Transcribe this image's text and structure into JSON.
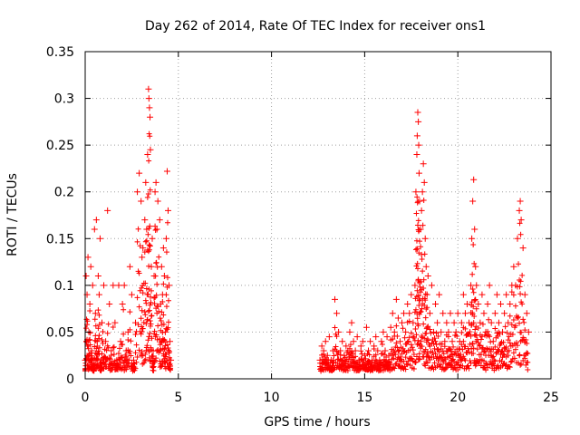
{
  "chart_data": {
    "type": "scatter",
    "title": "Day 262 of 2014, Rate Of TEC Index for receiver ons1",
    "xlabel": "GPS time / hours",
    "ylabel": "ROTI / TECUs",
    "xlim": [
      0,
      25
    ],
    "ylim": [
      0,
      0.35
    ],
    "grid": true,
    "marker": "+",
    "series_color": "#ff0000",
    "x_ticks": [
      {
        "value": 0,
        "label": "0"
      },
      {
        "value": 5,
        "label": "5"
      },
      {
        "value": 10,
        "label": "10"
      },
      {
        "value": 15,
        "label": "15"
      },
      {
        "value": 20,
        "label": "20"
      },
      {
        "value": 25,
        "label": "25"
      }
    ],
    "y_ticks": [
      {
        "value": 0,
        "label": "0"
      },
      {
        "value": 0.05,
        "label": "0.05"
      },
      {
        "value": 0.1,
        "label": "0.1"
      },
      {
        "value": 0.15,
        "label": "0.15"
      },
      {
        "value": 0.2,
        "label": "0.2"
      },
      {
        "value": 0.25,
        "label": "0.25"
      },
      {
        "value": 0.3,
        "label": "0.3"
      },
      {
        "value": 0.35,
        "label": "0.35"
      }
    ],
    "series": [
      {
        "name": "ROTI",
        "points": [
          [
            0.0,
            0.02
          ],
          [
            0.05,
            0.11
          ],
          [
            0.1,
            0.09
          ],
          [
            0.15,
            0.13
          ],
          [
            0.2,
            0.05
          ],
          [
            0.25,
            0.08
          ],
          [
            0.3,
            0.12
          ],
          [
            0.35,
            0.03
          ],
          [
            0.4,
            0.1
          ],
          [
            0.45,
            0.015
          ],
          [
            0.5,
            0.16
          ],
          [
            0.55,
            0.07
          ],
          [
            0.6,
            0.17
          ],
          [
            0.65,
            0.04
          ],
          [
            0.7,
            0.11
          ],
          [
            0.75,
            0.09
          ],
          [
            0.8,
            0.15
          ],
          [
            0.85,
            0.02
          ],
          [
            0.9,
            0.06
          ],
          [
            1.0,
            0.1
          ],
          [
            1.1,
            0.04
          ],
          [
            1.2,
            0.18
          ],
          [
            1.3,
            0.08
          ],
          [
            1.4,
            0.03
          ],
          [
            1.5,
            0.1
          ],
          [
            1.6,
            0.06
          ],
          [
            1.7,
            0.02
          ],
          [
            1.8,
            0.1
          ],
          [
            1.9,
            0.04
          ],
          [
            2.0,
            0.08
          ],
          [
            2.1,
            0.1
          ],
          [
            2.2,
            0.03
          ],
          [
            2.3,
            0.05
          ],
          [
            2.4,
            0.12
          ],
          [
            2.5,
            0.09
          ],
          [
            2.6,
            0.02
          ],
          [
            2.7,
            0.06
          ],
          [
            2.8,
            0.2
          ],
          [
            2.9,
            0.22
          ],
          [
            3.0,
            0.19
          ],
          [
            3.05,
            0.13
          ],
          [
            3.1,
            0.14
          ],
          [
            3.2,
            0.17
          ],
          [
            3.25,
            0.21
          ],
          [
            3.3,
            0.16
          ],
          [
            3.35,
            0.24
          ],
          [
            3.4,
            0.31
          ],
          [
            3.42,
            0.3
          ],
          [
            3.45,
            0.29
          ],
          [
            3.48,
            0.28
          ],
          [
            3.5,
            0.245
          ],
          [
            3.55,
            0.12
          ],
          [
            3.6,
            0.15
          ],
          [
            3.65,
            0.03
          ],
          [
            3.7,
            0.11
          ],
          [
            3.75,
            0.2
          ],
          [
            3.8,
            0.21
          ],
          [
            3.85,
            0.16
          ],
          [
            3.9,
            0.19
          ],
          [
            4.0,
            0.17
          ],
          [
            4.05,
            0.08
          ],
          [
            4.1,
            0.12
          ],
          [
            4.15,
            0.09
          ],
          [
            4.2,
            0.14
          ],
          [
            4.25,
            0.11
          ],
          [
            4.3,
            0.05
          ],
          [
            4.35,
            0.15
          ],
          [
            4.4,
            0.222
          ],
          [
            4.45,
            0.18
          ],
          [
            4.5,
            0.1
          ],
          [
            4.55,
            0.04
          ],
          [
            4.6,
            0.02
          ],
          [
            12.6,
            0.02
          ],
          [
            12.7,
            0.035
          ],
          [
            12.8,
            0.03
          ],
          [
            12.9,
            0.04
          ],
          [
            13.0,
            0.025
          ],
          [
            13.1,
            0.045
          ],
          [
            13.2,
            0.02
          ],
          [
            13.3,
            0.03
          ],
          [
            13.4,
            0.085
          ],
          [
            13.5,
            0.07
          ],
          [
            13.6,
            0.05
          ],
          [
            13.7,
            0.03
          ],
          [
            13.8,
            0.04
          ],
          [
            13.9,
            0.025
          ],
          [
            14.0,
            0.035
          ],
          [
            14.1,
            0.03
          ],
          [
            14.2,
            0.05
          ],
          [
            14.3,
            0.06
          ],
          [
            14.4,
            0.04
          ],
          [
            14.5,
            0.03
          ],
          [
            14.6,
            0.045
          ],
          [
            14.7,
            0.02
          ],
          [
            14.8,
            0.035
          ],
          [
            14.9,
            0.04
          ],
          [
            15.0,
            0.025
          ],
          [
            15.1,
            0.055
          ],
          [
            15.2,
            0.03
          ],
          [
            15.3,
            0.04
          ],
          [
            15.4,
            0.02
          ],
          [
            15.5,
            0.035
          ],
          [
            15.6,
            0.045
          ],
          [
            15.7,
            0.03
          ],
          [
            15.8,
            0.02
          ],
          [
            15.9,
            0.04
          ],
          [
            16.0,
            0.05
          ],
          [
            16.1,
            0.03
          ],
          [
            16.2,
            0.045
          ],
          [
            16.3,
            0.025
          ],
          [
            16.4,
            0.055
          ],
          [
            16.5,
            0.07
          ],
          [
            16.6,
            0.05
          ],
          [
            16.7,
            0.085
          ],
          [
            16.8,
            0.065
          ],
          [
            16.9,
            0.04
          ],
          [
            17.0,
            0.06
          ],
          [
            17.1,
            0.07
          ],
          [
            17.2,
            0.05
          ],
          [
            17.3,
            0.08
          ],
          [
            17.4,
            0.07
          ],
          [
            17.5,
            0.09
          ],
          [
            17.6,
            0.06
          ],
          [
            17.7,
            0.1
          ],
          [
            17.75,
            0.2
          ],
          [
            17.8,
            0.24
          ],
          [
            17.82,
            0.26
          ],
          [
            17.85,
            0.285
          ],
          [
            17.88,
            0.275
          ],
          [
            17.9,
            0.25
          ],
          [
            17.92,
            0.22
          ],
          [
            17.95,
            0.19
          ],
          [
            18.0,
            0.16
          ],
          [
            18.05,
            0.18
          ],
          [
            18.1,
            0.2
          ],
          [
            18.15,
            0.23
          ],
          [
            18.2,
            0.21
          ],
          [
            18.25,
            0.15
          ],
          [
            18.3,
            0.12
          ],
          [
            18.35,
            0.09
          ],
          [
            18.4,
            0.11
          ],
          [
            18.5,
            0.07
          ],
          [
            18.6,
            0.1
          ],
          [
            18.7,
            0.05
          ],
          [
            18.8,
            0.08
          ],
          [
            18.9,
            0.06
          ],
          [
            19.0,
            0.09
          ],
          [
            19.1,
            0.05
          ],
          [
            19.2,
            0.07
          ],
          [
            19.3,
            0.04
          ],
          [
            19.4,
            0.06
          ],
          [
            19.5,
            0.05
          ],
          [
            19.6,
            0.07
          ],
          [
            19.7,
            0.04
          ],
          [
            19.8,
            0.06
          ],
          [
            19.9,
            0.05
          ],
          [
            20.0,
            0.07
          ],
          [
            20.1,
            0.04
          ],
          [
            20.2,
            0.06
          ],
          [
            20.3,
            0.09
          ],
          [
            20.4,
            0.07
          ],
          [
            20.5,
            0.08
          ],
          [
            20.6,
            0.06
          ],
          [
            20.7,
            0.1
          ],
          [
            20.75,
            0.15
          ],
          [
            20.8,
            0.19
          ],
          [
            20.85,
            0.213
          ],
          [
            20.9,
            0.16
          ],
          [
            20.95,
            0.12
          ],
          [
            21.0,
            0.1
          ],
          [
            21.1,
            0.08
          ],
          [
            21.2,
            0.06
          ],
          [
            21.3,
            0.09
          ],
          [
            21.4,
            0.07
          ],
          [
            21.5,
            0.05
          ],
          [
            21.6,
            0.08
          ],
          [
            21.7,
            0.1
          ],
          [
            21.8,
            0.06
          ],
          [
            21.9,
            0.04
          ],
          [
            22.0,
            0.07
          ],
          [
            22.1,
            0.09
          ],
          [
            22.2,
            0.06
          ],
          [
            22.3,
            0.08
          ],
          [
            22.4,
            0.05
          ],
          [
            22.5,
            0.07
          ],
          [
            22.6,
            0.09
          ],
          [
            22.7,
            0.06
          ],
          [
            22.8,
            0.08
          ],
          [
            22.9,
            0.1
          ],
          [
            23.0,
            0.12
          ],
          [
            23.1,
            0.1
          ],
          [
            23.2,
            0.15
          ],
          [
            23.3,
            0.18
          ],
          [
            23.35,
            0.19
          ],
          [
            23.4,
            0.17
          ],
          [
            23.5,
            0.14
          ],
          [
            23.6,
            0.09
          ],
          [
            23.7,
            0.07
          ],
          [
            23.8,
            0.05
          ]
        ]
      }
    ]
  }
}
